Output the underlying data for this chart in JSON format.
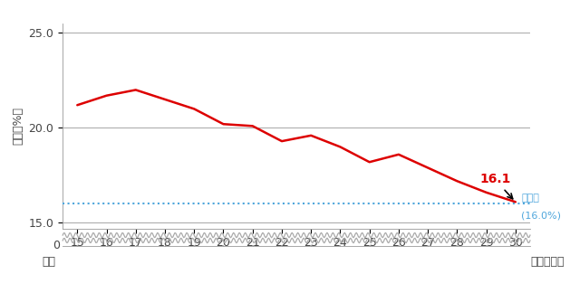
{
  "years": [
    15,
    16,
    17,
    18,
    19,
    20,
    21,
    22,
    23,
    24,
    25,
    26,
    27,
    28,
    29,
    30
  ],
  "values": [
    21.2,
    21.7,
    22.0,
    21.5,
    21.0,
    20.2,
    20.1,
    19.3,
    19.6,
    19.0,
    18.2,
    18.6,
    17.9,
    17.2,
    16.6,
    16.1
  ],
  "target_value": 16.0,
  "last_value_label": "16.1",
  "ylabel": "割合（%）",
  "xlabel_prefix": "平成",
  "xlabel_suffix": "年次（年）",
  "yticks": [
    15.0,
    20.0,
    25.0
  ],
  "ymin": 14.7,
  "ymax": 25.5,
  "line_color": "#dd0000",
  "target_line_color": "#4ea6dc",
  "annotation_color_value": "#dd0000",
  "annotation_color_target": "#4ea6dc",
  "target_label_line1": "目標値",
  "target_label_line2": "(16.0%)",
  "bg_color": "#ffffff",
  "grid_color": "#999999",
  "wavy_color": "#aaaaaa",
  "tick_label_fontsize": 9,
  "ylabel_fontsize": 9,
  "annotation_fontsize": 10
}
